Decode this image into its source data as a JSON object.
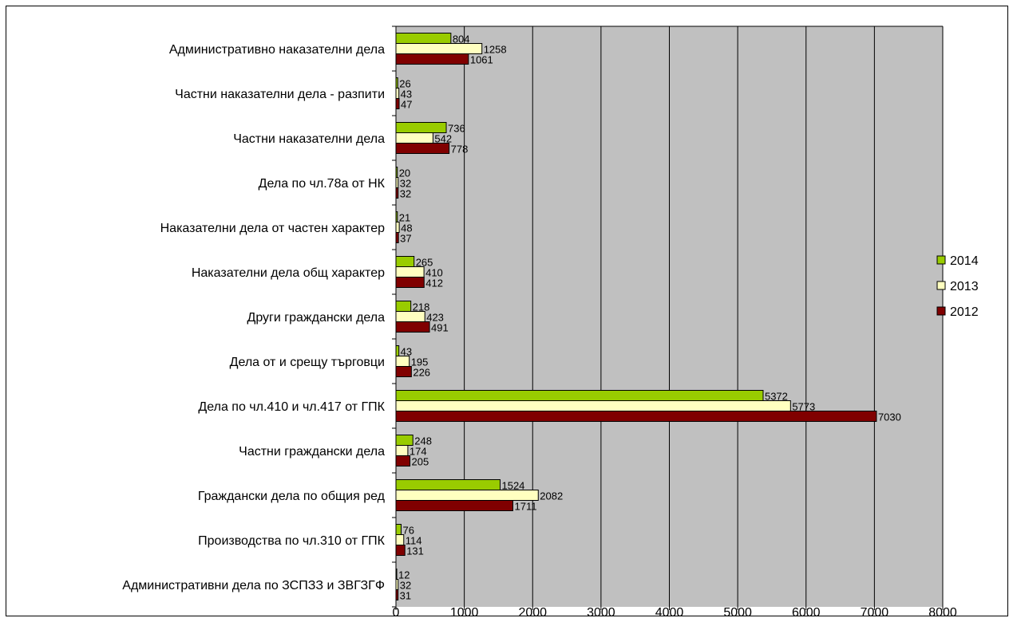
{
  "chart_data": {
    "type": "bar",
    "orientation": "horizontal",
    "categories": [
      "Административно наказателни дела",
      "Частни наказателни дела - разпити",
      "Частни наказателни дела",
      "Дела по чл.78а от НК",
      "Наказателни дела от частен характер",
      "Наказателни дела общ характер",
      "Други граждански дела",
      "Дела от и срещу търговци",
      "Дела по чл.410 и чл.417 от ГПК",
      "Частни граждански дела",
      "Граждански дела по общия ред",
      "Производства по чл.310 от ГПК",
      "Административни дела по ЗСПЗЗ и ЗВГЗГФ"
    ],
    "series": [
      {
        "name": "2014",
        "color": "#99cc00",
        "values": [
          804,
          26,
          736,
          20,
          21,
          265,
          218,
          43,
          5372,
          248,
          1524,
          76,
          12
        ]
      },
      {
        "name": "2013",
        "color": "#ffffc0",
        "values": [
          1258,
          43,
          542,
          32,
          48,
          410,
          423,
          195,
          5773,
          174,
          2082,
          114,
          32
        ]
      },
      {
        "name": "2012",
        "color": "#800000",
        "values": [
          1061,
          47,
          778,
          32,
          37,
          412,
          491,
          226,
          7030,
          205,
          1711,
          131,
          31
        ]
      }
    ],
    "xlim": [
      0,
      8000
    ],
    "xticks": [
      "0",
      "1000",
      "2000",
      "3000",
      "4000",
      "5000",
      "6000",
      "7000",
      "8000"
    ],
    "plot_background": "#c0c0c0",
    "grid": true,
    "legend": {
      "position": "right",
      "order": [
        "2014",
        "2013",
        "2012"
      ]
    },
    "data_labels": true,
    "title": "",
    "xlabel": "",
    "ylabel": ""
  }
}
